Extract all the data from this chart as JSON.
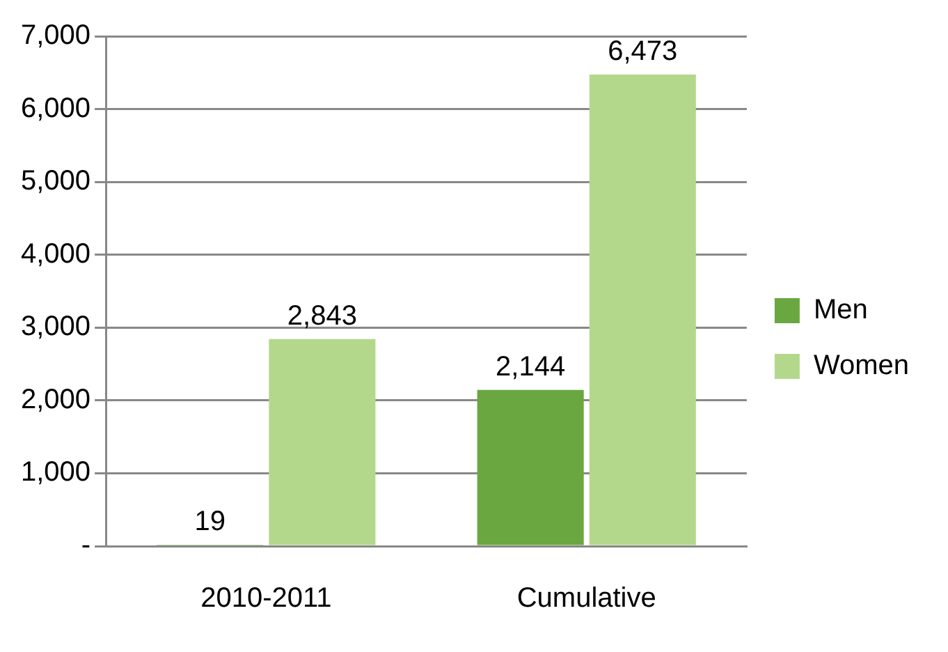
{
  "chart_data": {
    "type": "bar",
    "categories": [
      "2010-2011",
      "Cumulative"
    ],
    "series": [
      {
        "name": "Men",
        "color": "#6aa741",
        "values": [
          19,
          2144
        ],
        "value_labels": [
          "19",
          "2,144"
        ]
      },
      {
        "name": "Women",
        "color": "#b3d88c",
        "values": [
          2843,
          6473
        ],
        "value_labels": [
          "2,843",
          "6,473"
        ]
      }
    ],
    "ylim": [
      0,
      7000
    ],
    "yticks": [
      {
        "value": 0,
        "label": "-"
      },
      {
        "value": 1000,
        "label": "1,000"
      },
      {
        "value": 2000,
        "label": "2,000"
      },
      {
        "value": 3000,
        "label": "3,000"
      },
      {
        "value": 4000,
        "label": "4,000"
      },
      {
        "value": 5000,
        "label": "5,000"
      },
      {
        "value": 6000,
        "label": "6,000"
      },
      {
        "value": 7000,
        "label": "7,000"
      }
    ],
    "grid": "y",
    "legend": "right"
  }
}
